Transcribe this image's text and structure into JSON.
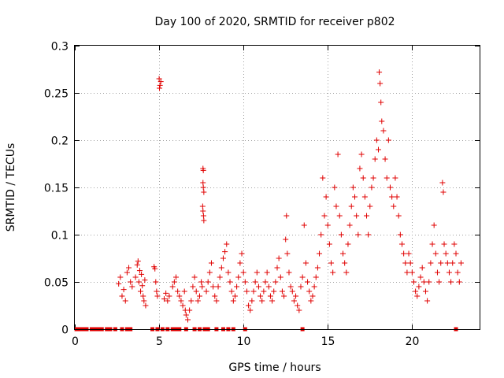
{
  "chart_data": {
    "type": "scatter",
    "title": "Day 100 of 2020, SRMTID for receiver p802",
    "xlabel": "GPS time / hours",
    "ylabel": "SRMTID / TECUs",
    "xlim": [
      0,
      24
    ],
    "ylim": [
      0,
      0.3
    ],
    "x_ticks": [
      0,
      5,
      10,
      15,
      20
    ],
    "x_tick_labels": [
      "0",
      "5",
      "10",
      "15",
      "20"
    ],
    "y_ticks": [
      0,
      0.05,
      0.1,
      0.15,
      0.2,
      0.25,
      0.3
    ],
    "y_tick_labels": [
      "0",
      "0.05",
      "0.1",
      "0.15",
      "0.2",
      "0.25",
      "0.3"
    ],
    "grid": true,
    "marker": "+",
    "series_color": "#e00000",
    "series": [
      {
        "name": "SRMTID",
        "points": [
          [
            2.6,
            0.048
          ],
          [
            2.7,
            0.055
          ],
          [
            2.8,
            0.035
          ],
          [
            2.9,
            0.042
          ],
          [
            3.0,
            0.03
          ],
          [
            3.1,
            0.06
          ],
          [
            3.2,
            0.065
          ],
          [
            3.3,
            0.05
          ],
          [
            3.4,
            0.045
          ],
          [
            3.6,
            0.055
          ],
          [
            3.7,
            0.068
          ],
          [
            3.75,
            0.072
          ],
          [
            3.8,
            0.05
          ],
          [
            3.85,
            0.062
          ],
          [
            3.9,
            0.04
          ],
          [
            3.95,
            0.058
          ],
          [
            4.0,
            0.046
          ],
          [
            4.05,
            0.035
          ],
          [
            4.1,
            0.03
          ],
          [
            4.15,
            0.052
          ],
          [
            4.2,
            0.025
          ],
          [
            4.7,
            0.066
          ],
          [
            4.75,
            0.064
          ],
          [
            4.8,
            0.05
          ],
          [
            4.85,
            0.04
          ],
          [
            4.9,
            0.035
          ],
          [
            5.0,
            0.265
          ],
          [
            5.05,
            0.258
          ],
          [
            5.1,
            0.262
          ],
          [
            5.02,
            0.255
          ],
          [
            5.3,
            0.032
          ],
          [
            5.4,
            0.038
          ],
          [
            5.5,
            0.03
          ],
          [
            5.6,
            0.035
          ],
          [
            5.8,
            0.045
          ],
          [
            5.9,
            0.05
          ],
          [
            6.0,
            0.055
          ],
          [
            6.1,
            0.04
          ],
          [
            6.2,
            0.035
          ],
          [
            6.3,
            0.03
          ],
          [
            6.4,
            0.025
          ],
          [
            6.5,
            0.04
          ],
          [
            6.55,
            0.02
          ],
          [
            6.6,
            0.015
          ],
          [
            6.7,
            0.01
          ],
          [
            6.8,
            0.02
          ],
          [
            6.9,
            0.03
          ],
          [
            7.0,
            0.045
          ],
          [
            7.1,
            0.055
          ],
          [
            7.2,
            0.04
          ],
          [
            7.3,
            0.03
          ],
          [
            7.4,
            0.035
          ],
          [
            7.5,
            0.05
          ],
          [
            7.55,
            0.045
          ],
          [
            7.6,
            0.17
          ],
          [
            7.62,
            0.168
          ],
          [
            7.6,
            0.155
          ],
          [
            7.62,
            0.15
          ],
          [
            7.65,
            0.145
          ],
          [
            7.58,
            0.13
          ],
          [
            7.6,
            0.125
          ],
          [
            7.63,
            0.12
          ],
          [
            7.65,
            0.115
          ],
          [
            7.8,
            0.04
          ],
          [
            7.9,
            0.05
          ],
          [
            8.0,
            0.06
          ],
          [
            8.1,
            0.07
          ],
          [
            8.2,
            0.045
          ],
          [
            8.3,
            0.035
          ],
          [
            8.4,
            0.03
          ],
          [
            8.5,
            0.045
          ],
          [
            8.6,
            0.055
          ],
          [
            8.7,
            0.065
          ],
          [
            8.8,
            0.075
          ],
          [
            8.9,
            0.082
          ],
          [
            9.0,
            0.09
          ],
          [
            9.1,
            0.06
          ],
          [
            9.2,
            0.05
          ],
          [
            9.3,
            0.04
          ],
          [
            9.4,
            0.03
          ],
          [
            9.5,
            0.035
          ],
          [
            9.6,
            0.045
          ],
          [
            9.7,
            0.055
          ],
          [
            9.8,
            0.07
          ],
          [
            9.9,
            0.08
          ],
          [
            10.0,
            0.06
          ],
          [
            10.1,
            0.05
          ],
          [
            10.2,
            0.04
          ],
          [
            10.3,
            0.025
          ],
          [
            10.4,
            0.02
          ],
          [
            10.5,
            0.03
          ],
          [
            10.6,
            0.04
          ],
          [
            10.7,
            0.05
          ],
          [
            10.8,
            0.06
          ],
          [
            10.9,
            0.045
          ],
          [
            11.0,
            0.035
          ],
          [
            11.1,
            0.03
          ],
          [
            11.2,
            0.04
          ],
          [
            11.3,
            0.05
          ],
          [
            11.4,
            0.06
          ],
          [
            11.5,
            0.045
          ],
          [
            11.6,
            0.035
          ],
          [
            11.7,
            0.03
          ],
          [
            11.8,
            0.04
          ],
          [
            11.9,
            0.05
          ],
          [
            12.0,
            0.065
          ],
          [
            12.1,
            0.075
          ],
          [
            12.2,
            0.055
          ],
          [
            12.3,
            0.04
          ],
          [
            12.4,
            0.035
          ],
          [
            12.5,
            0.095
          ],
          [
            12.55,
            0.12
          ],
          [
            12.6,
            0.08
          ],
          [
            12.7,
            0.06
          ],
          [
            12.8,
            0.045
          ],
          [
            12.9,
            0.04
          ],
          [
            13.0,
            0.03
          ],
          [
            13.1,
            0.035
          ],
          [
            13.2,
            0.025
          ],
          [
            13.3,
            0.02
          ],
          [
            13.4,
            0.045
          ],
          [
            13.5,
            0.055
          ],
          [
            13.6,
            0.11
          ],
          [
            13.7,
            0.07
          ],
          [
            13.8,
            0.05
          ],
          [
            13.9,
            0.04
          ],
          [
            14.0,
            0.03
          ],
          [
            14.1,
            0.035
          ],
          [
            14.2,
            0.045
          ],
          [
            14.3,
            0.055
          ],
          [
            14.4,
            0.065
          ],
          [
            14.5,
            0.08
          ],
          [
            14.6,
            0.1
          ],
          [
            14.7,
            0.16
          ],
          [
            14.8,
            0.12
          ],
          [
            14.9,
            0.14
          ],
          [
            15.0,
            0.11
          ],
          [
            15.1,
            0.09
          ],
          [
            15.2,
            0.07
          ],
          [
            15.3,
            0.06
          ],
          [
            15.4,
            0.15
          ],
          [
            15.5,
            0.13
          ],
          [
            15.6,
            0.185
          ],
          [
            15.7,
            0.12
          ],
          [
            15.8,
            0.1
          ],
          [
            15.9,
            0.08
          ],
          [
            16.0,
            0.07
          ],
          [
            16.1,
            0.06
          ],
          [
            16.2,
            0.09
          ],
          [
            16.3,
            0.11
          ],
          [
            16.4,
            0.13
          ],
          [
            16.5,
            0.15
          ],
          [
            16.6,
            0.14
          ],
          [
            16.7,
            0.12
          ],
          [
            16.8,
            0.1
          ],
          [
            16.9,
            0.17
          ],
          [
            17.0,
            0.185
          ],
          [
            17.1,
            0.16
          ],
          [
            17.2,
            0.14
          ],
          [
            17.3,
            0.12
          ],
          [
            17.4,
            0.1
          ],
          [
            17.5,
            0.13
          ],
          [
            17.6,
            0.15
          ],
          [
            17.7,
            0.16
          ],
          [
            17.8,
            0.18
          ],
          [
            17.9,
            0.2
          ],
          [
            18.0,
            0.19
          ],
          [
            18.05,
            0.272
          ],
          [
            18.1,
            0.26
          ],
          [
            18.15,
            0.24
          ],
          [
            18.2,
            0.22
          ],
          [
            18.3,
            0.21
          ],
          [
            18.4,
            0.18
          ],
          [
            18.5,
            0.16
          ],
          [
            18.6,
            0.2
          ],
          [
            18.7,
            0.15
          ],
          [
            18.8,
            0.14
          ],
          [
            18.9,
            0.13
          ],
          [
            19.0,
            0.16
          ],
          [
            19.1,
            0.14
          ],
          [
            19.2,
            0.12
          ],
          [
            19.3,
            0.1
          ],
          [
            19.4,
            0.09
          ],
          [
            19.5,
            0.08
          ],
          [
            19.6,
            0.07
          ],
          [
            19.7,
            0.06
          ],
          [
            19.8,
            0.08
          ],
          [
            19.9,
            0.07
          ],
          [
            20.0,
            0.06
          ],
          [
            20.1,
            0.05
          ],
          [
            20.2,
            0.04
          ],
          [
            20.3,
            0.035
          ],
          [
            20.4,
            0.045
          ],
          [
            20.5,
            0.055
          ],
          [
            20.6,
            0.065
          ],
          [
            20.7,
            0.05
          ],
          [
            20.8,
            0.04
          ],
          [
            20.9,
            0.03
          ],
          [
            21.0,
            0.05
          ],
          [
            21.1,
            0.07
          ],
          [
            21.2,
            0.09
          ],
          [
            21.3,
            0.11
          ],
          [
            21.4,
            0.08
          ],
          [
            21.5,
            0.06
          ],
          [
            21.6,
            0.05
          ],
          [
            21.7,
            0.07
          ],
          [
            21.8,
            0.155
          ],
          [
            21.85,
            0.145
          ],
          [
            21.9,
            0.09
          ],
          [
            22.0,
            0.08
          ],
          [
            22.1,
            0.07
          ],
          [
            22.2,
            0.06
          ],
          [
            22.3,
            0.05
          ],
          [
            22.4,
            0.07
          ],
          [
            22.5,
            0.09
          ],
          [
            22.6,
            0.08
          ],
          [
            22.7,
            0.06
          ],
          [
            22.8,
            0.05
          ],
          [
            22.9,
            0.07
          ]
        ]
      }
    ],
    "zero_points_x": [
      0.1,
      0.3,
      0.5,
      0.7,
      1.0,
      1.2,
      1.4,
      1.6,
      1.9,
      2.1,
      2.4,
      2.8,
      3.1,
      3.3,
      4.6,
      4.9,
      5.2,
      5.5,
      5.8,
      6.0,
      6.2,
      6.6,
      7.1,
      7.4,
      7.7,
      7.9,
      8.4,
      8.8,
      9.1,
      9.4,
      10.1,
      13.5,
      22.6
    ]
  }
}
